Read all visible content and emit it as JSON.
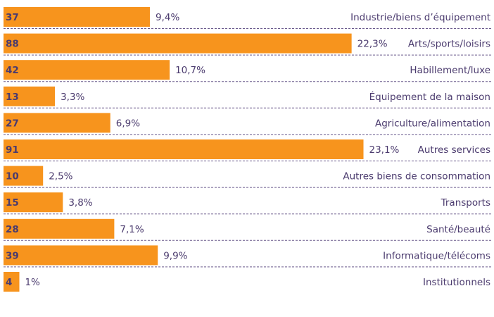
{
  "chart_data": {
    "type": "bar",
    "categories": [
      "Industrie/biens d’équipement",
      "Arts/sports/loisirs",
      "Habillement/luxe",
      "Équipement de la maison",
      "Agriculture/alimentation",
      "Autres services",
      "Autres biens de consommation",
      "Transports",
      "Santé/beauté",
      "Informatique/télécoms",
      "Institutionnels"
    ],
    "values": [
      37,
      88,
      42,
      13,
      27,
      91,
      10,
      15,
      28,
      39,
      4
    ],
    "shares": [
      9.4,
      22.3,
      10.7,
      3.3,
      6.9,
      23.1,
      2.5,
      3.8,
      7.1,
      9.9,
      1
    ],
    "share_labels": [
      "9,4%",
      "22,3%",
      "10,7%",
      "3,3%",
      "6,9%",
      "23,1%",
      "2,5%",
      "3,8%",
      "7,1%",
      "9,9%",
      "1%"
    ],
    "color": "#f7941d",
    "xlim": [
      0,
      124
    ]
  }
}
